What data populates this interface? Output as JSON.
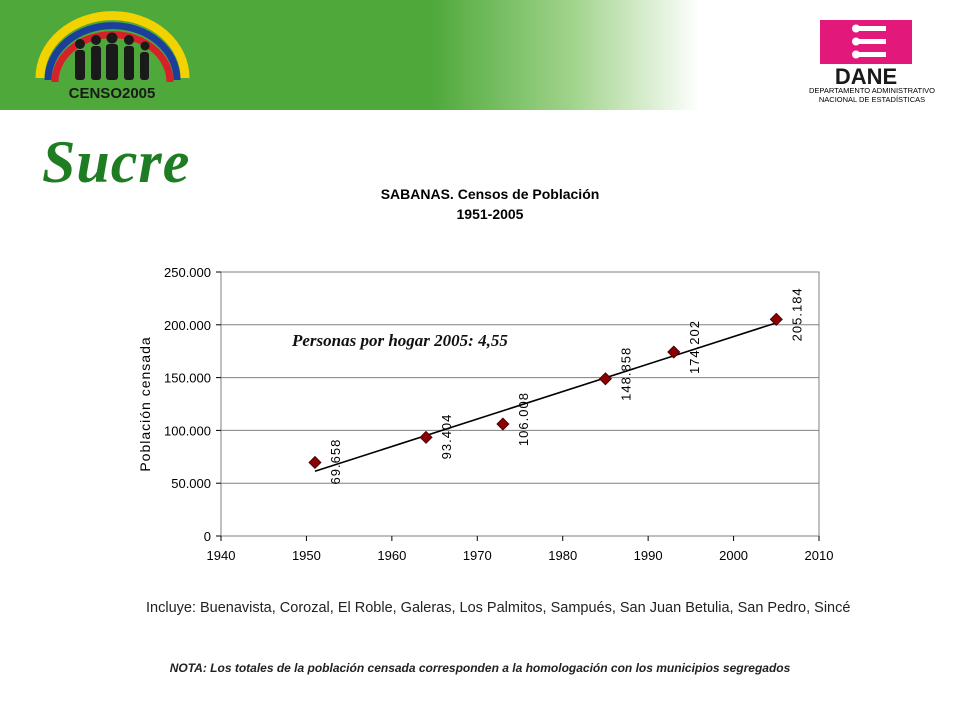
{
  "header": {
    "censo_logo_text": "CENSO2005",
    "dane_logo_text": "DANE",
    "dane_caption_line1": "DEPARTAMENTO ADMINISTRATIVO",
    "dane_caption_line2": "NACIONAL DE ESTADÍSTICAS"
  },
  "region_title": "Sucre",
  "annotation": "Personas por hogar 2005: 4,55",
  "footnote": "Incluye: Buenavista, Corozal, El Roble, Galeras, Los Palmitos, Sampués, San Juan Betulia, San Pedro, Sincé",
  "nota": "NOTA: Los totales de la población censada corresponden a la homologación con los municipios segregados",
  "colors": {
    "banner_green": "#4ea83a",
    "title_green": "#1e7d23",
    "dane_magenta": "#e2197b",
    "marker": "#8b0000"
  },
  "chart_data": {
    "type": "scatter",
    "title_line1": "SABANAS. Censos de Población",
    "title_line2": "1951-2005",
    "xlabel": "",
    "ylabel": "Población censada",
    "xlim": [
      1940,
      2010
    ],
    "ylim": [
      0,
      250000
    ],
    "x_ticks": [
      "1940",
      "1950",
      "1960",
      "1970",
      "1980",
      "1990",
      "2000",
      "2010"
    ],
    "y_ticks": [
      "0",
      "50.000",
      "100.000",
      "150.000",
      "200.000",
      "250.000"
    ],
    "grid": "horizontal",
    "trendline": "linear",
    "x": [
      1951,
      1964,
      1973,
      1985,
      1993,
      2005
    ],
    "values": [
      69658,
      93404,
      106008,
      148858,
      174202,
      205184
    ],
    "data_labels": [
      "69.658",
      "93.404",
      "106.008",
      "148.858",
      "174.202",
      "205.184"
    ]
  }
}
